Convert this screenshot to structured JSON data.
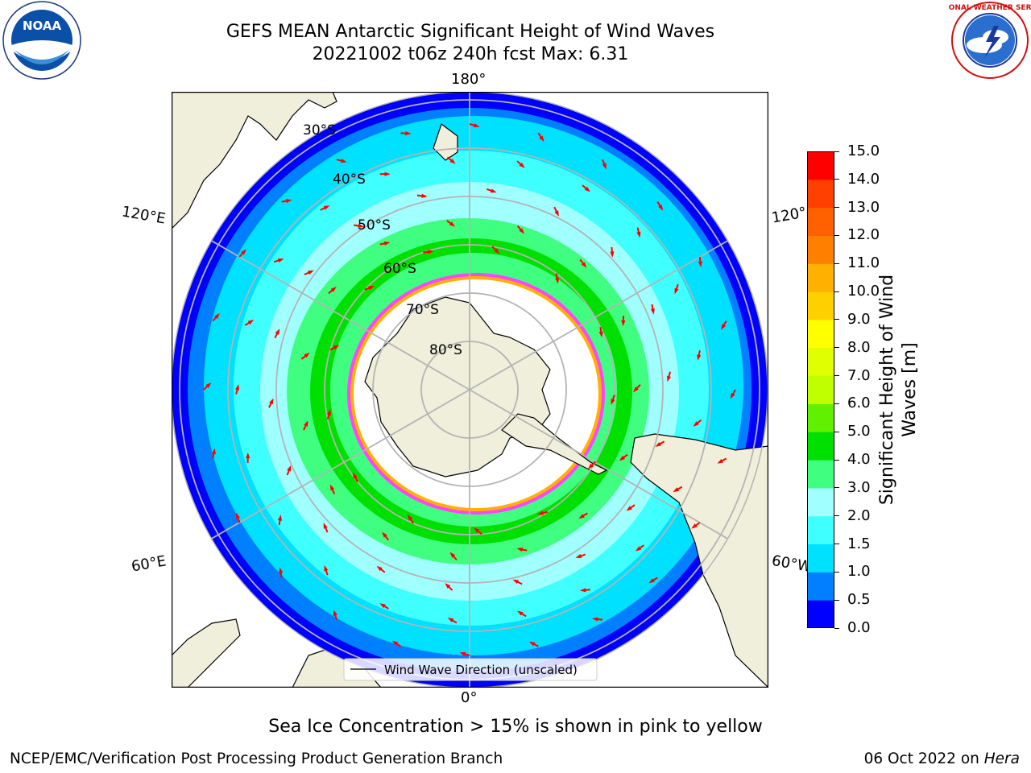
{
  "title_line1": "GEFS MEAN Antarctic Significant Height of Wind Waves",
  "title_line2": "20221002 t06z 240h fcst   Max: 6.31",
  "logos": {
    "left": {
      "icon": "noaa-logo",
      "text": "NOAA"
    },
    "right": {
      "icon": "national-weather-service-logo",
      "text": "NATIONAL WEATHER SERVICE"
    }
  },
  "map": {
    "projection": "south-polar-stereographic",
    "longitude_labels": {
      "top": "180°",
      "bottom": "0°",
      "upper_left": "120°E",
      "lower_left": "60°E",
      "upper_right": "120°",
      "lower_right": "60°W"
    },
    "latitude_labels": [
      "30°S",
      "40°S",
      "50°S",
      "60°S",
      "70°S",
      "80°S"
    ],
    "legend_label": "Wind Wave Direction (unscaled)",
    "colors": {
      "land": "#efefdb",
      "ice_fill": "#ffffff",
      "ice_edge": [
        "#ff44ff",
        "#ffb000",
        "#ffff44"
      ],
      "arrow": "#ff0000",
      "grid": "#b4b4b4"
    }
  },
  "colorbar": {
    "label": "Significant Height of Wind Waves [m]",
    "ticks": [
      "0.0",
      "0.5",
      "1.0",
      "1.5",
      "2.0",
      "3.0",
      "4.0",
      "5.0",
      "6.0",
      "7.0",
      "8.0",
      "9.0",
      "10.0",
      "11.0",
      "12.0",
      "13.0",
      "14.0",
      "15.0"
    ],
    "colors": [
      "#0000ff",
      "#0080ff",
      "#00e0ff",
      "#40ffff",
      "#a0ffff",
      "#40ff80",
      "#00e000",
      "#60f000",
      "#c0ff00",
      "#e0ff00",
      "#ffff00",
      "#ffd000",
      "#ffb000",
      "#ff8000",
      "#ff6000",
      "#ff4000",
      "#ff0000"
    ]
  },
  "note": "Sea Ice Concentration > 15% is shown in pink to yellow",
  "footer_left": "NCEP/EMC/Verification Post Processing Product Generation Branch",
  "footer_right_date": "06 Oct 2022 on",
  "footer_right_machine": "Hera"
}
